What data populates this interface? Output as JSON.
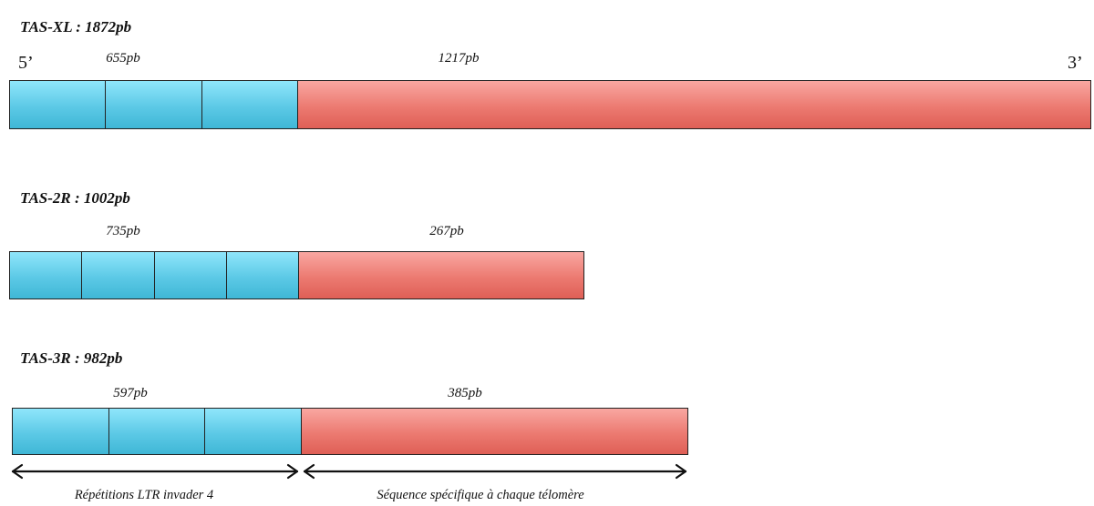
{
  "constructs": [
    {
      "name": "TAS-XL : 1872pb",
      "repeat_label": "655pb",
      "specific_label": "1217pb",
      "repeat_bp": 655,
      "specific_bp": 1217,
      "repeat_units": 3,
      "five_prime": "5’",
      "three_prime": "3’"
    },
    {
      "name": "TAS-2R : 1002pb",
      "repeat_label": "735pb",
      "specific_label": "267pb",
      "repeat_bp": 735,
      "specific_bp": 267,
      "repeat_units": 4
    },
    {
      "name": "TAS-3R : 982pb",
      "repeat_label": "597pb",
      "specific_label": "385pb",
      "repeat_bp": 597,
      "specific_bp": 385,
      "repeat_units": 3
    }
  ],
  "legend": {
    "repeats": "Répétitions LTR invader 4",
    "specific": "Séquence spécifique à chaque télomère"
  },
  "colors": {
    "repeat_fill": "#5cc9e6",
    "specific_fill": "#ec7a71",
    "outline": "#222222"
  }
}
